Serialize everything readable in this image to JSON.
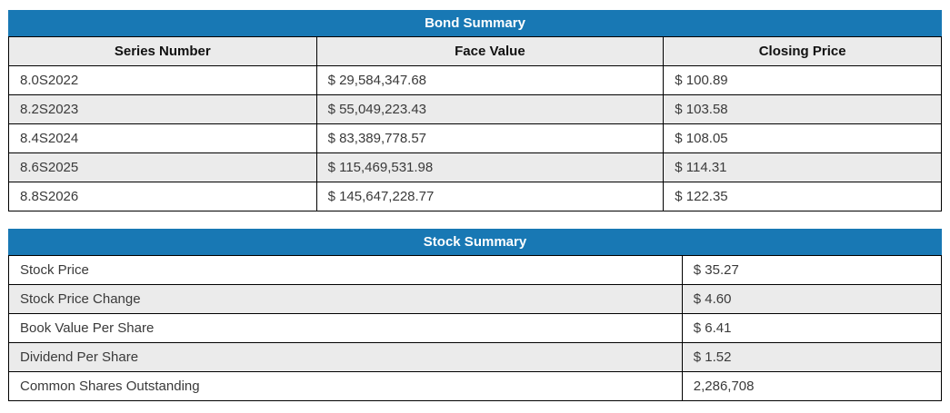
{
  "colors": {
    "header_blue": "#1878b4",
    "header_text": "#ffffff",
    "row_alt": "#ebebeb",
    "border": "#000000",
    "cell_text": "#3a3a3a"
  },
  "bond_summary": {
    "title": "Bond Summary",
    "columns": [
      "Series Number",
      "Face Value",
      "Closing Price"
    ],
    "rows": [
      [
        "8.0S2022",
        "$ 29,584,347.68",
        "$ 100.89"
      ],
      [
        "8.2S2023",
        "$ 55,049,223.43",
        "$ 103.58"
      ],
      [
        "8.4S2024",
        "$ 83,389,778.57",
        "$ 108.05"
      ],
      [
        "8.6S2025",
        "$ 115,469,531.98",
        "$ 114.31"
      ],
      [
        "8.8S2026",
        "$ 145,647,228.77",
        "$ 122.35"
      ]
    ]
  },
  "stock_summary": {
    "title": "Stock Summary",
    "rows": [
      [
        "Stock Price",
        "$ 35.27"
      ],
      [
        "Stock Price Change",
        "$ 4.60"
      ],
      [
        "Book Value Per Share",
        "$ 6.41"
      ],
      [
        "Dividend Per Share",
        "$ 1.52"
      ],
      [
        "Common Shares Outstanding",
        "2,286,708"
      ]
    ]
  }
}
